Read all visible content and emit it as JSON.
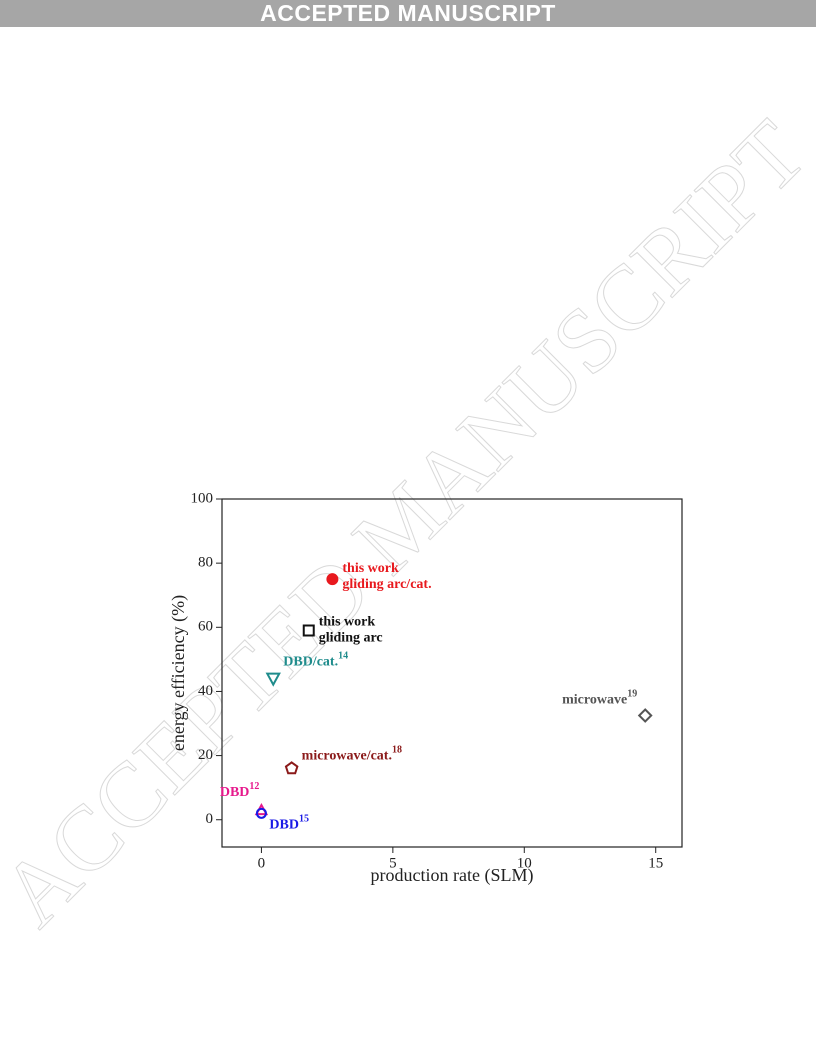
{
  "header": "ACCEPTED MANUSCRIPT",
  "watermark": "ACCEPTED MANUSCRIPT",
  "chart_data": {
    "type": "scatter",
    "xlabel": "production rate (SLM)",
    "ylabel": "energy efficiency (%)",
    "xlim": [
      -1.5,
      16
    ],
    "ylim": [
      -8.5,
      100
    ],
    "xticks": [
      0,
      5,
      10,
      15
    ],
    "yticks": [
      0,
      20,
      40,
      60,
      80,
      100
    ],
    "series": [
      {
        "label": [
          "this work",
          "gliding arc/cat."
        ],
        "color": "#e8191e",
        "marker": "filled-circle",
        "x": 2.7,
        "y": 75
      },
      {
        "label": [
          "this work",
          "gliding arc"
        ],
        "color": "#111111",
        "marker": "square",
        "x": 1.8,
        "y": 59
      },
      {
        "label": [
          "DBD/cat."
        ],
        "sup": "14",
        "color": "#1f8c8c",
        "marker": "triangle-down",
        "x": 0.45,
        "y": 44
      },
      {
        "label": [
          "microwave"
        ],
        "sup": "19",
        "color": "#555555",
        "marker": "diamond",
        "x": 14.6,
        "y": 32.5
      },
      {
        "label": [
          "microwave/cat."
        ],
        "sup": "18",
        "color": "#8b1a1a",
        "marker": "pentagon",
        "x": 1.15,
        "y": 16
      },
      {
        "label": [
          "DBD"
        ],
        "sup": "12",
        "color": "#e6198c",
        "marker": "triangle-up",
        "x": 0,
        "y": 3
      },
      {
        "label": [
          "DBD"
        ],
        "sup": "15",
        "color": "#1a1ae6",
        "marker": "circle",
        "x": 0,
        "y": 2
      }
    ]
  }
}
